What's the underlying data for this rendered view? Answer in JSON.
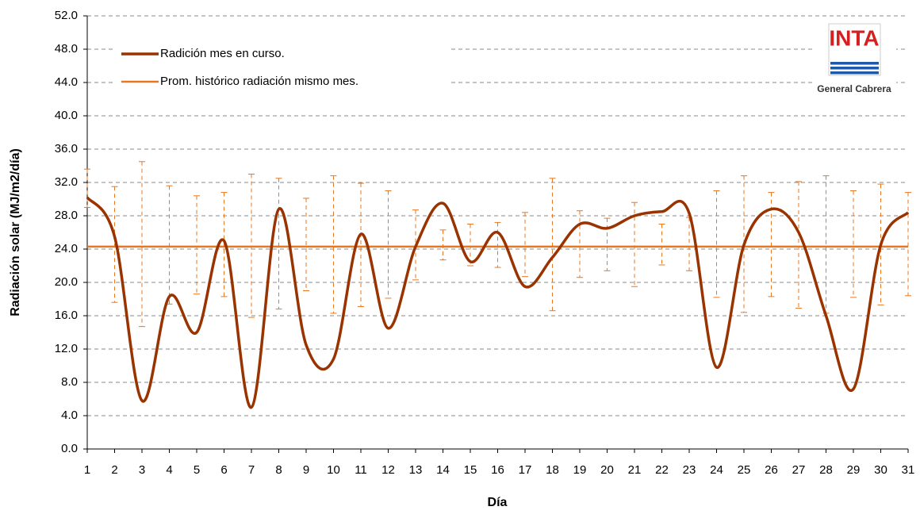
{
  "chart_data": {
    "type": "line",
    "x_label": "Día",
    "y_label": "Radiación solar (MJ/m2/día)",
    "x": [
      1,
      2,
      3,
      4,
      5,
      6,
      7,
      8,
      9,
      10,
      11,
      12,
      13,
      14,
      15,
      16,
      17,
      18,
      19,
      20,
      21,
      22,
      23,
      24,
      25,
      26,
      27,
      28,
      29,
      30,
      31
    ],
    "xlim": [
      1,
      31
    ],
    "xticks": [
      1,
      2,
      3,
      4,
      5,
      6,
      7,
      8,
      9,
      10,
      11,
      12,
      13,
      14,
      15,
      16,
      17,
      18,
      19,
      20,
      21,
      22,
      23,
      24,
      25,
      26,
      27,
      28,
      29,
      30,
      31
    ],
    "ylim": [
      0,
      52
    ],
    "yticks": [
      {
        "value": 0,
        "label": "0.0"
      },
      {
        "value": 4,
        "label": "4.0"
      },
      {
        "value": 8,
        "label": "8.0"
      },
      {
        "value": 12,
        "label": "12.0"
      },
      {
        "value": 16,
        "label": "16.0"
      },
      {
        "value": 20,
        "label": "20.0"
      },
      {
        "value": 24,
        "label": "24.0"
      },
      {
        "value": 28,
        "label": "28.0"
      },
      {
        "value": 32,
        "label": "32.0"
      },
      {
        "value": 36,
        "label": "36.0"
      },
      {
        "value": 40,
        "label": "40.0"
      },
      {
        "value": 44,
        "label": "44.0"
      },
      {
        "value": 48,
        "label": "48.0"
      },
      {
        "value": 52,
        "label": "52.0"
      }
    ],
    "grid": true,
    "legend": "upper left",
    "series": [
      {
        "name": "Radición mes en curso.",
        "color": "#993300",
        "values": [
          30.2,
          25.5,
          5.8,
          18.3,
          14.0,
          25.0,
          5.0,
          28.8,
          12.5,
          10.8,
          25.8,
          14.5,
          24.3,
          29.5,
          22.5,
          26.0,
          19.5,
          23.0,
          27.0,
          26.5,
          28.0,
          28.5,
          28.3,
          9.8,
          24.5,
          28.8,
          26.0,
          16.0,
          7.2,
          24.5,
          28.4
        ]
      },
      {
        "name": "Prom. histórico radiación mismo mes.",
        "color": "#e87722",
        "value": 24.3,
        "upper": [
          33.6,
          31.5,
          34.5,
          31.6,
          30.4,
          30.8,
          33.0,
          32.5,
          30.1,
          32.8,
          31.9,
          31.0,
          28.7,
          26.3,
          27.0,
          27.2,
          28.4,
          32.5,
          28.6,
          27.7,
          29.6,
          27.0,
          27.8,
          31.0,
          32.8,
          30.8,
          32.1,
          32.8,
          31.0,
          31.8,
          30.8
        ],
        "lower": [
          29.0,
          17.6,
          14.7,
          17.4,
          18.6,
          18.3,
          15.8,
          16.8,
          19.0,
          16.3,
          17.1,
          18.1,
          20.3,
          22.7,
          22.0,
          21.8,
          20.7,
          16.6,
          20.6,
          21.4,
          19.5,
          22.1,
          21.4,
          18.2,
          16.4,
          18.3,
          16.9,
          16.3,
          18.2,
          17.3,
          18.4
        ]
      }
    ],
    "logo": {
      "text": "INTA",
      "caption": "General Cabrera"
    }
  }
}
